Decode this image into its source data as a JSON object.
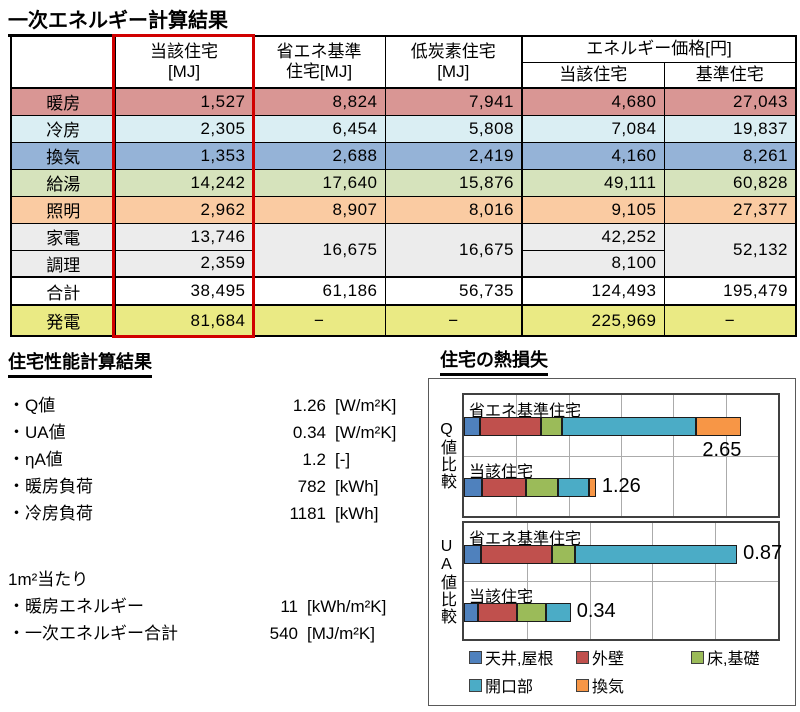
{
  "energy_table": {
    "title": "一次エネルギー計算結果",
    "header": {
      "subject": [
        "当該住宅",
        "[MJ]"
      ],
      "standard": [
        "省エネ基準",
        "住宅[MJ]"
      ],
      "low_carbon": [
        "低炭素住宅",
        "[MJ]"
      ],
      "price_group": "エネルギー価格[円]",
      "price_subject": "当該住宅",
      "price_standard": "基準住宅"
    },
    "rows": {
      "heating": {
        "label": "暖房",
        "subject_mj": "1,527",
        "standard_mj": "8,824",
        "lowcarbon_mj": "7,941",
        "price_subject": "4,680",
        "price_standard": "27,043"
      },
      "cooling": {
        "label": "冷房",
        "subject_mj": "2,305",
        "standard_mj": "6,454",
        "lowcarbon_mj": "5,808",
        "price_subject": "7,084",
        "price_standard": "19,837"
      },
      "ventilation": {
        "label": "換気",
        "subject_mj": "1,353",
        "standard_mj": "2,688",
        "lowcarbon_mj": "2,419",
        "price_subject": "4,160",
        "price_standard": "8,261"
      },
      "hot_water": {
        "label": "給湯",
        "subject_mj": "14,242",
        "standard_mj": "17,640",
        "lowcarbon_mj": "15,876",
        "price_subject": "49,111",
        "price_standard": "60,828"
      },
      "lighting": {
        "label": "照明",
        "subject_mj": "2,962",
        "standard_mj": "8,907",
        "lowcarbon_mj": "8,016",
        "price_subject": "9,105",
        "price_standard": "27,377"
      },
      "appliances": {
        "label": "家電",
        "subject_mj": "13,746",
        "standard_mj": "16,675",
        "lowcarbon_mj": "16,675",
        "price_subject": "42,252",
        "price_standard": "52,132"
      },
      "cooking": {
        "label": "調理",
        "subject_mj": "2,359",
        "price_subject": "8,100"
      },
      "total": {
        "label": "合計",
        "subject_mj": "38,495",
        "standard_mj": "61,186",
        "lowcarbon_mj": "56,735",
        "price_subject": "124,493",
        "price_standard": "195,479"
      },
      "generation": {
        "label": "発電",
        "subject_mj": "81,684",
        "standard_mj": "−",
        "lowcarbon_mj": "−",
        "price_subject": "225,969",
        "price_standard": "−"
      }
    },
    "row_colors": {
      "heating": "#D99694",
      "cooling": "#DAEEF3",
      "ventilation": "#95B3D7",
      "hot_water": "#D6E3BC",
      "lighting": "#FACBA2",
      "appliances": "#ECECEC",
      "cooking": "#ECECEC",
      "total": "#FFFFFF",
      "generation": "#EAEA84"
    },
    "highlight_color": "#D00000"
  },
  "performance": {
    "title": "住宅性能計算結果",
    "items": [
      {
        "label": "・Q値",
        "value": "1.26",
        "unit": "[W/m²K]"
      },
      {
        "label": "・UA値",
        "value": "0.34",
        "unit": "[W/m²K]"
      },
      {
        "label": "・ηA値",
        "value": "1.2",
        "unit": "[-]"
      },
      {
        "label": "・暖房負荷",
        "value": "782",
        "unit": "[kWh]"
      },
      {
        "label": "・冷房負荷",
        "value": "1181",
        "unit": "[kWh]"
      }
    ],
    "per_m2_heading": "1m²当たり",
    "per_m2_items": [
      {
        "label": "・暖房エネルギー",
        "value": "11",
        "unit": "[kWh/m²K]"
      },
      {
        "label": "・一次エネルギー合計",
        "value": "540",
        "unit": "[MJ/m²K]"
      }
    ]
  },
  "chart_data": {
    "type": "bar",
    "orientation": "horizontal",
    "stacked": true,
    "title": "住宅の熱損失",
    "legend": [
      "天井,屋根",
      "外壁",
      "床,基礎",
      "開口部",
      "換気"
    ],
    "legend_row_break": 3,
    "legend_position": "bottom",
    "grid": true,
    "series_colors": {
      "天井,屋根": "#4F81BD",
      "外壁": "#C0504D",
      "床,基礎": "#9BBB59",
      "開口部": "#4BACC6",
      "換気": "#F79646"
    },
    "groups": [
      {
        "axis_label": "Q値比較",
        "xlim": [
          0,
          3.0
        ],
        "gridline_interval": 0.5,
        "bars": [
          {
            "category": "省エネ基準住宅",
            "total": 2.65,
            "label_position": "below",
            "segments": {
              "天井,屋根": 0.15,
              "外壁": 0.59,
              "床,基礎": 0.2,
              "開口部": 1.28,
              "換気": 0.43
            }
          },
          {
            "category": "当該住宅",
            "total": 1.26,
            "label_position": "right",
            "segments": {
              "天井,屋根": 0.17,
              "外壁": 0.42,
              "床,基礎": 0.31,
              "開口部": 0.29,
              "換気": 0.07
            }
          }
        ]
      },
      {
        "axis_label": "UA値比較",
        "xlim": [
          0,
          1.0
        ],
        "gridline_interval": 0.2,
        "bars": [
          {
            "category": "省エネ基準住宅",
            "total": 0.87,
            "label_position": "right",
            "segments": {
              "天井,屋根": 0.055,
              "外壁": 0.225,
              "床,基礎": 0.075,
              "開口部": 0.515,
              "換気": 0
            }
          },
          {
            "category": "当該住宅",
            "total": 0.34,
            "label_position": "right",
            "segments": {
              "天井,屋根": 0.045,
              "外壁": 0.125,
              "床,基礎": 0.09,
              "開口部": 0.08,
              "換気": 0
            }
          }
        ]
      }
    ]
  }
}
